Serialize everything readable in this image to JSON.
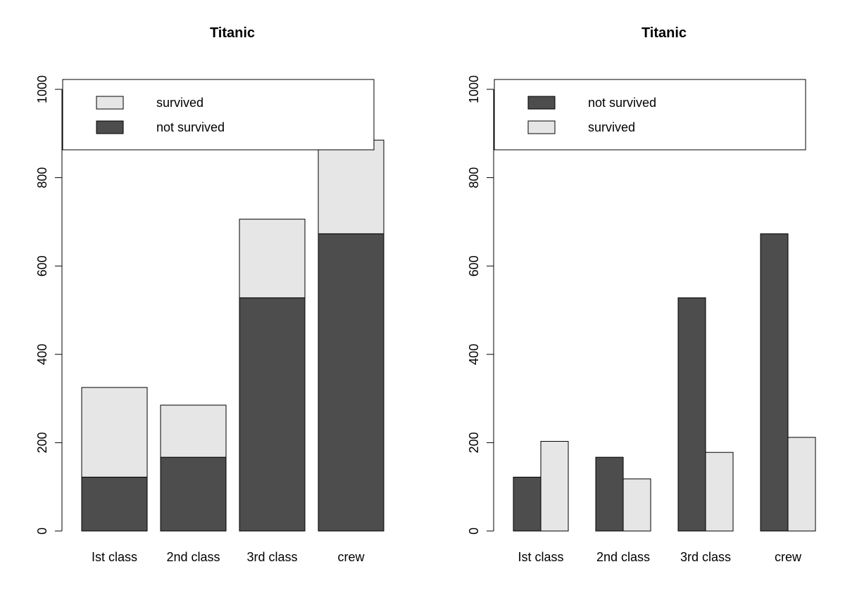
{
  "chart_data": [
    {
      "type": "bar",
      "stacked": true,
      "title": "Titanic",
      "xlabel": "",
      "ylabel": "",
      "categories": [
        "Ist class",
        "2nd class",
        "3rd class",
        "crew"
      ],
      "series": [
        {
          "name": "not survived",
          "values": [
            122,
            167,
            528,
            673
          ],
          "color": "#4d4d4d"
        },
        {
          "name": "survived",
          "values": [
            203,
            118,
            178,
            212
          ],
          "color": "#e6e6e6"
        }
      ],
      "yticks": [
        0,
        200,
        400,
        600,
        800,
        1000
      ],
      "ylim": [
        0,
        1000
      ],
      "legend": {
        "placement": "top",
        "entries": [
          "survived",
          "not survived"
        ]
      }
    },
    {
      "type": "bar",
      "stacked": false,
      "title": "Titanic",
      "xlabel": "",
      "ylabel": "",
      "categories": [
        "Ist class",
        "2nd class",
        "3rd class",
        "crew"
      ],
      "series": [
        {
          "name": "not survived",
          "values": [
            122,
            167,
            528,
            673
          ],
          "color": "#4d4d4d"
        },
        {
          "name": "survived",
          "values": [
            203,
            118,
            178,
            212
          ],
          "color": "#e6e6e6"
        }
      ],
      "yticks": [
        0,
        200,
        400,
        600,
        800,
        1000
      ],
      "ylim": [
        0,
        1000
      ],
      "legend": {
        "placement": "top",
        "entries": [
          "not survived",
          "survived"
        ]
      }
    }
  ]
}
